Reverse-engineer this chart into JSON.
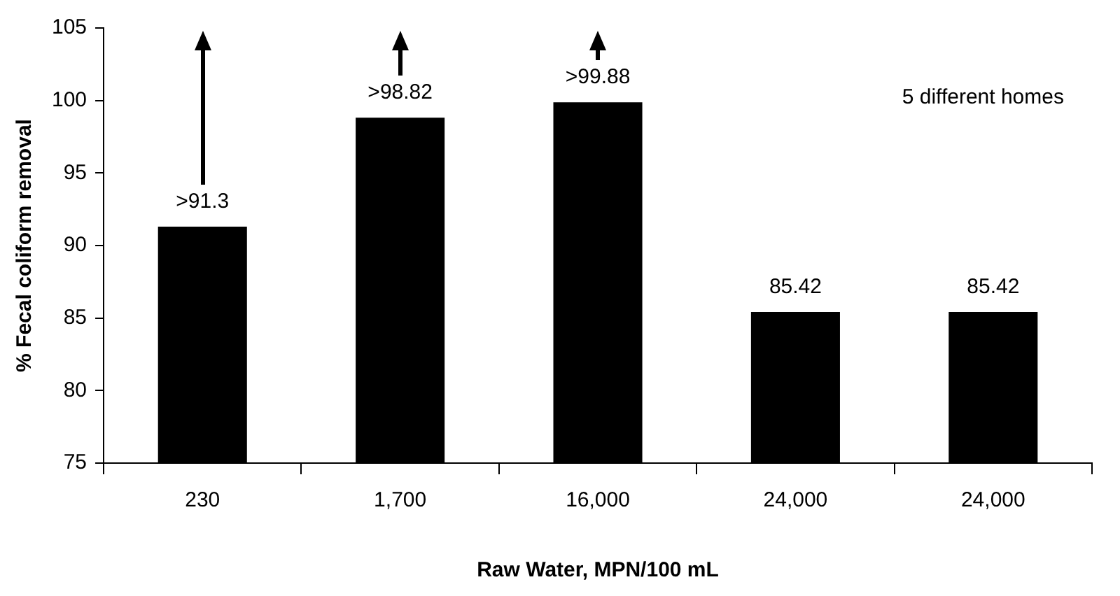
{
  "chart_data": {
    "type": "bar",
    "xlabel": "Raw Water, MPN/100 mL",
    "ylabel": "% Fecal coliform removal",
    "categories": [
      "230",
      "1,700",
      "16,000",
      "24,000",
      "24,000"
    ],
    "values": [
      91.3,
      98.82,
      99.88,
      85.42,
      85.42
    ],
    "value_labels": [
      ">91.3",
      ">98.82",
      ">99.88",
      "85.42",
      "85.42"
    ],
    "color": "#000000",
    "ylim": [
      75,
      105
    ],
    "yticks": [
      75,
      80,
      85,
      90,
      95,
      100,
      105
    ],
    "grid": false,
    "legend": false,
    "annotations": [
      "5 different homes"
    ]
  }
}
